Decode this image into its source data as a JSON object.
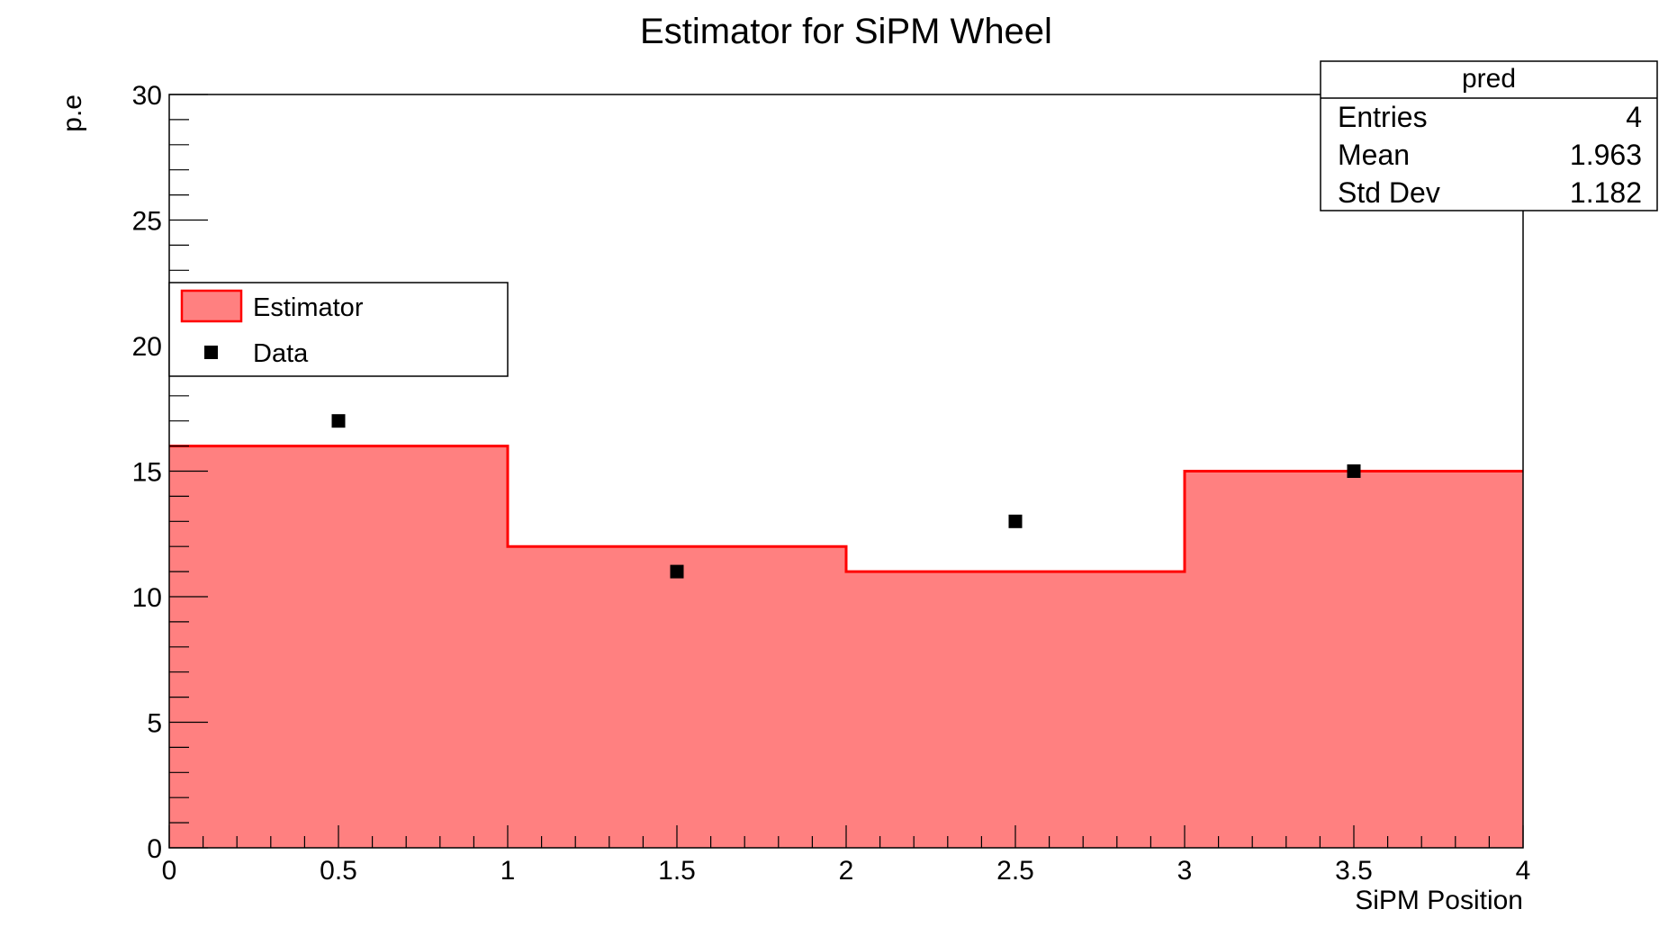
{
  "chart_data": {
    "type": "bar",
    "title": "Estimator for SiPM Wheel",
    "xlabel": "SiPM Position",
    "ylabel": "p.e",
    "xlim": [
      0,
      4
    ],
    "ylim": [
      0,
      30
    ],
    "x_ticks": [
      0,
      0.5,
      1,
      1.5,
      2,
      2.5,
      3,
      3.5,
      4
    ],
    "x_tick_labels": [
      "0",
      "0.5",
      "1",
      "1.5",
      "2",
      "2.5",
      "3",
      "3.5",
      "4"
    ],
    "y_ticks": [
      0,
      5,
      10,
      15,
      20,
      25,
      30
    ],
    "y_tick_labels": [
      "0",
      "5",
      "10",
      "15",
      "20",
      "25",
      "30"
    ],
    "grid": false,
    "histogram": {
      "name": "Estimator",
      "bin_edges": [
        0,
        1,
        2,
        3,
        4
      ],
      "values": [
        16,
        12,
        11,
        15
      ],
      "fill_color": "#ff8080",
      "line_color": "#ff0000"
    },
    "points": {
      "name": "Data",
      "x": [
        0.5,
        1.5,
        2.5,
        3.5
      ],
      "y": [
        17,
        11,
        13,
        15
      ],
      "marker": "square",
      "color": "#000000"
    },
    "legend": {
      "placement": "left",
      "entries": [
        {
          "label": "Estimator",
          "kind": "fill"
        },
        {
          "label": "Data",
          "kind": "marker"
        }
      ]
    },
    "stats_box": {
      "title": "pred",
      "placement": "top-right",
      "rows": [
        {
          "label": "Entries",
          "value": "4"
        },
        {
          "label": "Mean",
          "value": "1.963"
        },
        {
          "label": "Std Dev",
          "value": "1.182"
        }
      ]
    }
  }
}
